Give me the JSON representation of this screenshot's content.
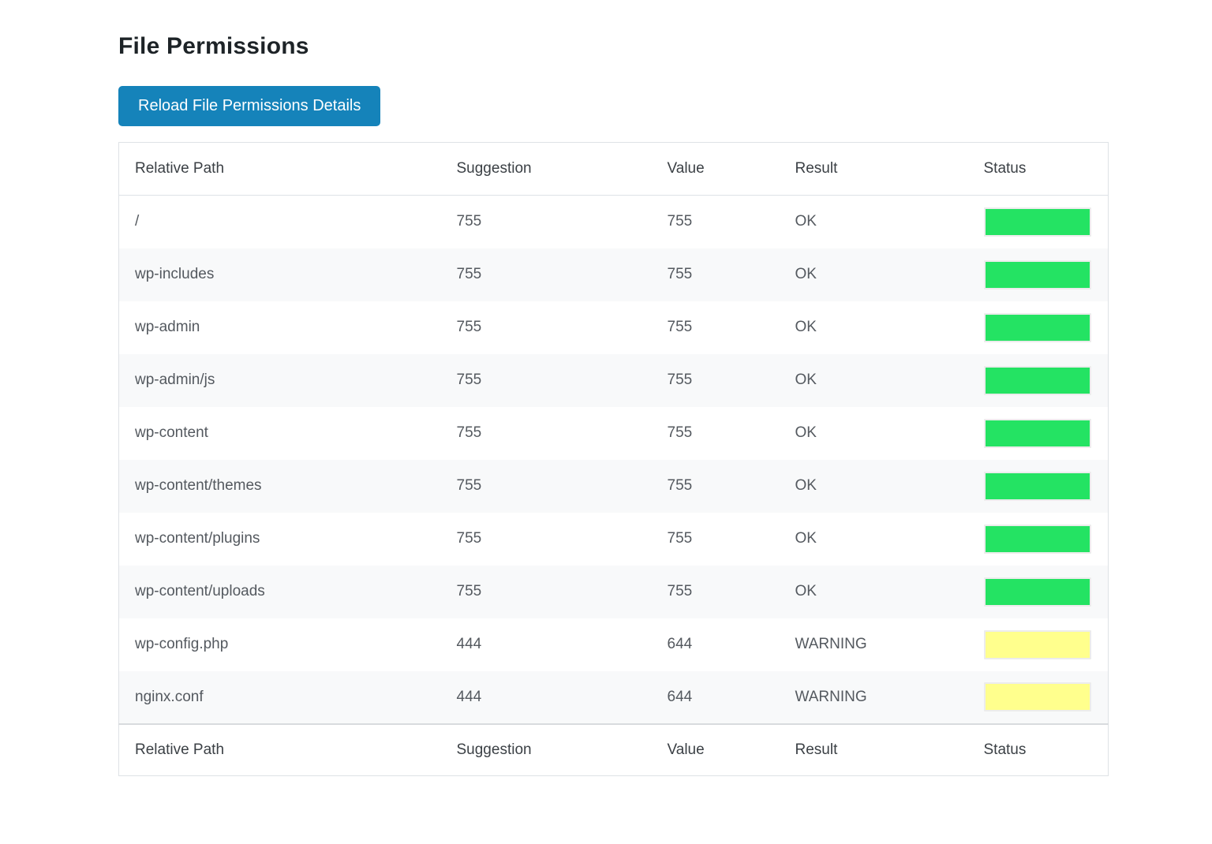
{
  "page": {
    "title": "File Permissions",
    "reload_button_label": "Reload File Permissions Details"
  },
  "table": {
    "columns": [
      "Relative Path",
      "Suggestion",
      "Value",
      "Result",
      "Status"
    ],
    "footer_columns": [
      "Relative Path",
      "Suggestion",
      "Value",
      "Result",
      "Status"
    ],
    "rows": [
      {
        "path": "/",
        "suggestion": "755",
        "value": "755",
        "result": "OK",
        "status": "ok"
      },
      {
        "path": "wp-includes",
        "suggestion": "755",
        "value": "755",
        "result": "OK",
        "status": "ok"
      },
      {
        "path": "wp-admin",
        "suggestion": "755",
        "value": "755",
        "result": "OK",
        "status": "ok"
      },
      {
        "path": "wp-admin/js",
        "suggestion": "755",
        "value": "755",
        "result": "OK",
        "status": "ok"
      },
      {
        "path": "wp-content",
        "suggestion": "755",
        "value": "755",
        "result": "OK",
        "status": "ok"
      },
      {
        "path": "wp-content/themes",
        "suggestion": "755",
        "value": "755",
        "result": "OK",
        "status": "ok"
      },
      {
        "path": "wp-content/plugins",
        "suggestion": "755",
        "value": "755",
        "result": "OK",
        "status": "ok"
      },
      {
        "path": "wp-content/uploads",
        "suggestion": "755",
        "value": "755",
        "result": "OK",
        "status": "ok"
      },
      {
        "path": "wp-config.php",
        "suggestion": "444",
        "value": "644",
        "result": "WARNING",
        "status": "warning"
      },
      {
        "path": "nginx.conf",
        "suggestion": "444",
        "value": "644",
        "result": "WARNING",
        "status": "warning"
      }
    ]
  },
  "colors": {
    "status_ok": "#24e363",
    "status_warning": "#ffff8d",
    "button_bg": "#1583ba"
  }
}
